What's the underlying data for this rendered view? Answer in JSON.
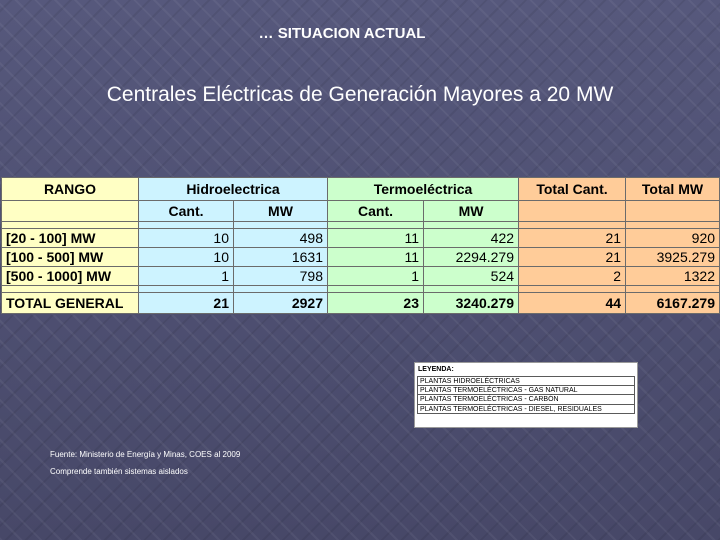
{
  "header": {
    "kicker": "… SITUACION ACTUAL",
    "title": "Centrales Eléctricas de Generación Mayores a 20 MW"
  },
  "table": {
    "col_range": "RANGO",
    "col_hydro": "Hidroelectrica",
    "col_thermo": "Termoeléctrica",
    "col_total_cant": "Total Cant.",
    "col_total_mw": "Total MW",
    "sub_cant": "Cant.",
    "sub_mw": "MW",
    "rows": [
      {
        "range": "[20 - 100] MW",
        "hydro_cant": "10",
        "hydro_mw": "498",
        "thermo_cant": "11",
        "thermo_mw": "422",
        "total_cant": "21",
        "total_mw": "920"
      },
      {
        "range": "[100 - 500] MW",
        "hydro_cant": "10",
        "hydro_mw": "1631",
        "thermo_cant": "11",
        "thermo_mw": "2294.279",
        "total_cant": "21",
        "total_mw": "3925.279"
      },
      {
        "range": "[500 - 1000] MW",
        "hydro_cant": "1",
        "hydro_mw": "798",
        "thermo_cant": "1",
        "thermo_mw": "524",
        "total_cant": "2",
        "total_mw": "1322"
      }
    ],
    "total": {
      "label": "TOTAL GENERAL",
      "hydro_cant": "21",
      "hydro_mw": "2927",
      "thermo_cant": "23",
      "thermo_mw": "3240.279",
      "total_cant": "44",
      "total_mw": "6167.279"
    }
  },
  "legend": {
    "title": "LEYENDA:",
    "items": [
      "PLANTAS HIDROELÉCTRICAS",
      "PLANTAS TERMOELÉCTRICAS - GAS NATURAL",
      "PLANTAS TERMOELÉCTRICAS - CARBÓN",
      "PLANTAS TERMOELÉCTRICAS - DIESEL, RESIDUALES"
    ]
  },
  "source": {
    "line1": "Fuente: Ministerio de Energía y Minas, COES al 2009",
    "line2": "Comprende también sistemas aislados"
  },
  "colors": {
    "range": "#ffffc4",
    "hydro": "#cdf3ff",
    "thermo": "#ccffcc",
    "total": "#ffcc99"
  }
}
